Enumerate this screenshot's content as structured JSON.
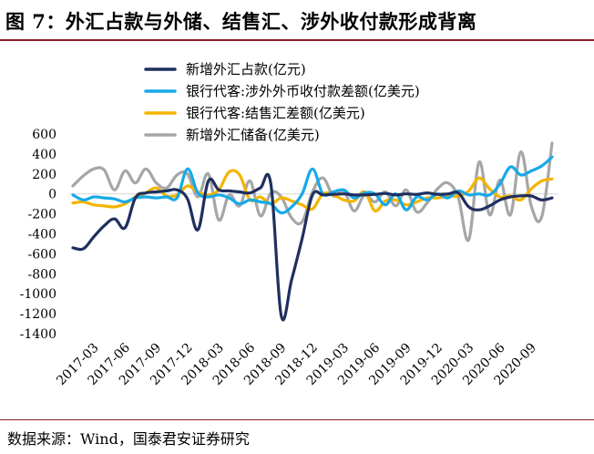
{
  "page": {
    "title": "图 7：外汇占款与外储、结售汇、涉外收付款形成背离",
    "source": "数据来源：Wind，国泰君安证券研究"
  },
  "colors": {
    "rule": "#8a1d2b",
    "axis": "#d9d9d9"
  },
  "chart_data": {
    "type": "line",
    "title": "",
    "xlabel": "",
    "ylabel": "",
    "ylim": [
      -1400,
      600
    ],
    "yticks": [
      600,
      400,
      200,
      0,
      -200,
      -400,
      -600,
      -800,
      -1000,
      -1200,
      -1400
    ],
    "xticks": [
      "2017-03",
      "2017-06",
      "2017-09",
      "2017-12",
      "2018-03",
      "2018-06",
      "2018-09",
      "2018-12",
      "2019-03",
      "2019-06",
      "2019-09",
      "2019-12",
      "2020-03",
      "2020-06",
      "2020-09"
    ],
    "x": [
      "2017-01",
      "2017-02",
      "2017-03",
      "2017-04",
      "2017-05",
      "2017-06",
      "2017-07",
      "2017-08",
      "2017-09",
      "2017-10",
      "2017-11",
      "2017-12",
      "2018-01",
      "2018-02",
      "2018-03",
      "2018-04",
      "2018-05",
      "2018-06",
      "2018-07",
      "2018-08",
      "2018-09",
      "2018-10",
      "2018-11",
      "2018-12",
      "2019-01",
      "2019-02",
      "2019-03",
      "2019-04",
      "2019-05",
      "2019-06",
      "2019-07",
      "2019-08",
      "2019-09",
      "2019-10",
      "2019-11",
      "2019-12",
      "2020-01",
      "2020-02",
      "2020-03",
      "2020-04",
      "2020-05",
      "2020-06",
      "2020-07",
      "2020-08",
      "2020-09",
      "2020-10",
      "2020-11"
    ],
    "legend_position": "top-center",
    "grid": false,
    "series": [
      {
        "name": "新增外汇占款(亿元)",
        "color": "#1f2f5e",
        "values": [
          -540,
          -550,
          -430,
          -320,
          -250,
          -340,
          -40,
          10,
          20,
          30,
          40,
          -50,
          -360,
          130,
          40,
          30,
          20,
          10,
          60,
          100,
          -1220,
          -860,
          -450,
          -10,
          -10,
          -5,
          0,
          -10,
          -10,
          -5,
          5,
          -10,
          0,
          -5,
          10,
          -5,
          0,
          10,
          -130,
          -160,
          -120,
          -60,
          -30,
          -20,
          -20,
          -60,
          -40
        ]
      },
      {
        "name": "银行代客:涉外外币收付款差额(亿美元)",
        "color": "#17a9e8",
        "values": [
          -10,
          -60,
          -30,
          -40,
          -50,
          -80,
          -40,
          -30,
          -40,
          -30,
          -40,
          250,
          10,
          -30,
          -10,
          -40,
          -100,
          -60,
          -80,
          -100,
          -190,
          -130,
          0,
          250,
          0,
          20,
          40,
          -40,
          10,
          0,
          -110,
          0,
          -160,
          -30,
          -60,
          0,
          -40,
          30,
          -10,
          0,
          -10,
          100,
          270,
          190,
          230,
          280,
          370
        ]
      },
      {
        "name": "银行代客:结售汇差额(亿美元)",
        "color": "#f5b400",
        "values": [
          -90,
          -80,
          -110,
          -120,
          -130,
          -100,
          -30,
          10,
          60,
          -20,
          -10,
          80,
          20,
          -10,
          40,
          220,
          190,
          -60,
          -30,
          -100,
          -40,
          -70,
          -110,
          -150,
          0,
          -10,
          -60,
          -70,
          20,
          -170,
          -70,
          -60,
          -110,
          -80,
          -40,
          -40,
          -20,
          -20,
          30,
          160,
          50,
          -30,
          -20,
          -60,
          50,
          130,
          150
        ]
      },
      {
        "name": "新增外汇储备(亿美元)",
        "color": "#a6a6a6",
        "values": [
          80,
          180,
          250,
          240,
          40,
          230,
          110,
          250,
          110,
          60,
          190,
          200,
          -30,
          200,
          -260,
          -10,
          -120,
          130,
          -220,
          10,
          -30,
          -240,
          -280,
          20,
          160,
          -20,
          30,
          -170,
          -10,
          -80,
          20,
          -120,
          40,
          -180,
          -90,
          50,
          110,
          -40,
          -460,
          320,
          -210,
          140,
          -210,
          420,
          -120,
          -230,
          510
        ]
      }
    ]
  }
}
